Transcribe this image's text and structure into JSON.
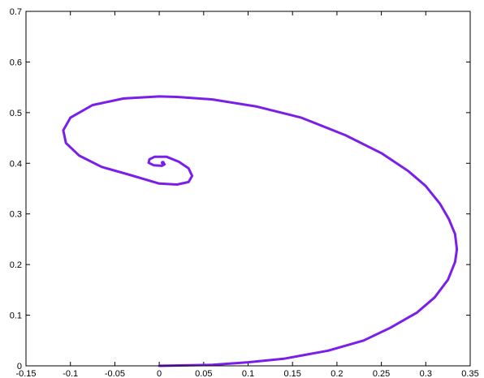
{
  "chart_data": {
    "type": "line",
    "title": "",
    "xlabel": "",
    "ylabel": "",
    "xlim": [
      -0.15,
      0.35
    ],
    "ylim": [
      0,
      0.7
    ],
    "grid": false,
    "x_ticks": [
      "-0.15",
      "-0.1",
      "-0.05",
      "0",
      "0.05",
      "0.1",
      "0.15",
      "0.2",
      "0.25",
      "0.3",
      "0.35"
    ],
    "y_ticks": [
      "0",
      "0.1",
      "0.2",
      "0.3",
      "0.4",
      "0.5",
      "0.6",
      "0.7"
    ],
    "series": [
      {
        "color": "#7b1fe8",
        "x": [
          0.0,
          0.06,
          0.1,
          0.14,
          0.19,
          0.23,
          0.26,
          0.29,
          0.31,
          0.325,
          0.333,
          0.335,
          0.333,
          0.326,
          0.316,
          0.3,
          0.28,
          0.25,
          0.21,
          0.16,
          0.11,
          0.06,
          0.02,
          0.0,
          -0.04,
          -0.075,
          -0.1,
          -0.108,
          -0.105,
          -0.09,
          -0.065,
          -0.035,
          0.0,
          0.02,
          0.033,
          0.037,
          0.033,
          0.022,
          0.008,
          -0.005,
          -0.011,
          -0.012,
          -0.006,
          0.003,
          0.006,
          0.004
        ],
        "y": [
          0.0,
          0.002,
          0.007,
          0.014,
          0.03,
          0.05,
          0.075,
          0.105,
          0.135,
          0.17,
          0.205,
          0.23,
          0.26,
          0.29,
          0.32,
          0.355,
          0.385,
          0.42,
          0.455,
          0.49,
          0.512,
          0.526,
          0.531,
          0.532,
          0.528,
          0.515,
          0.49,
          0.465,
          0.44,
          0.415,
          0.393,
          0.378,
          0.36,
          0.358,
          0.363,
          0.375,
          0.39,
          0.403,
          0.413,
          0.413,
          0.408,
          0.401,
          0.396,
          0.395,
          0.398,
          0.401
        ]
      }
    ]
  }
}
